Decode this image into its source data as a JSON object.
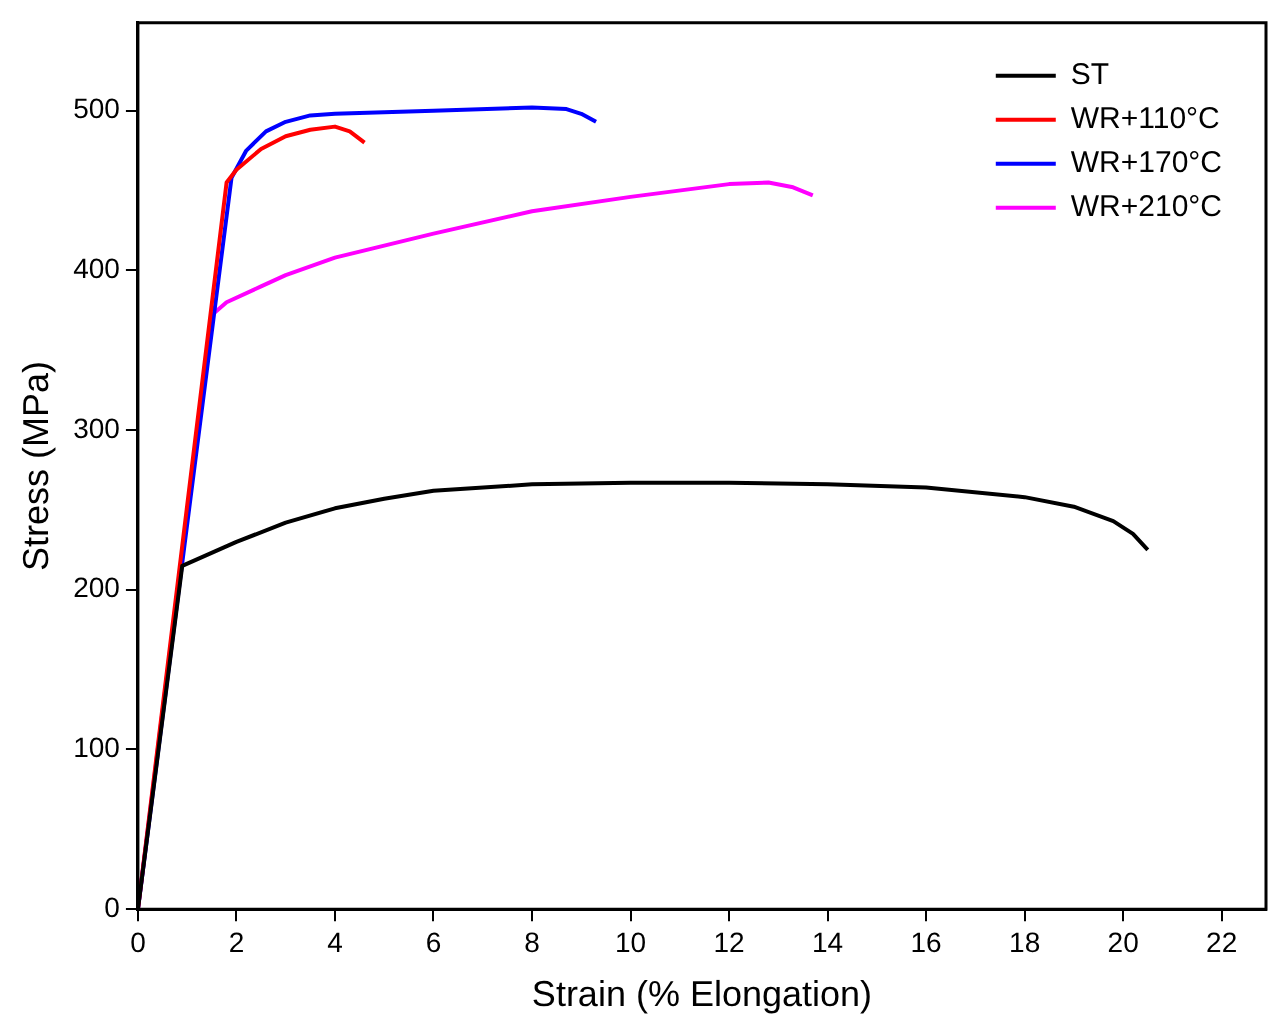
{
  "chart_data": {
    "type": "line",
    "xlabel": "Strain (% Elongation)",
    "ylabel": "Stress (MPa)",
    "xlim": [
      0,
      22.9
    ],
    "xticks": [
      0,
      2,
      4,
      6,
      8,
      10,
      12,
      14,
      16,
      18,
      20,
      22
    ],
    "ylim": [
      0,
      555
    ],
    "yticks": [
      0,
      100,
      200,
      300,
      400,
      500
    ],
    "grid": false,
    "legend": "top right",
    "marker": "none",
    "line_style": "solid",
    "series": [
      {
        "name": "ST",
        "color": "#000000",
        "x": [
          0,
          0.9,
          2,
          3,
          4,
          5,
          6,
          8,
          10,
          12,
          14,
          16,
          18,
          19,
          19.8,
          20.2,
          20.5
        ],
        "values": [
          0,
          215,
          230,
          242,
          251,
          257,
          262,
          266,
          267,
          267,
          266,
          264,
          258,
          252,
          243,
          235,
          225
        ]
      },
      {
        "name": "WR+110°C",
        "color": "#ff0000",
        "x": [
          0,
          1.8,
          2,
          2.5,
          3,
          3.5,
          4,
          4.3,
          4.6
        ],
        "values": [
          0,
          455,
          463,
          476,
          484,
          488,
          490,
          487,
          480
        ]
      },
      {
        "name": "WR+170°C",
        "color": "#0000ff",
        "x": [
          0,
          1.9,
          2.2,
          2.6,
          3,
          3.5,
          4,
          6,
          8,
          8.7,
          9,
          9.3
        ],
        "values": [
          0,
          458,
          475,
          487,
          493,
          497,
          498,
          500,
          502,
          501,
          498,
          493
        ]
      },
      {
        "name": "WR+210°C",
        "color": "#ff00ff",
        "x": [
          0,
          1.5,
          1.8,
          2.5,
          3,
          4,
          6,
          8,
          10,
          12,
          12.8,
          13.3,
          13.7
        ],
        "values": [
          0,
          372,
          380,
          390,
          397,
          408,
          423,
          437,
          446,
          454,
          455,
          452,
          447
        ]
      }
    ]
  }
}
